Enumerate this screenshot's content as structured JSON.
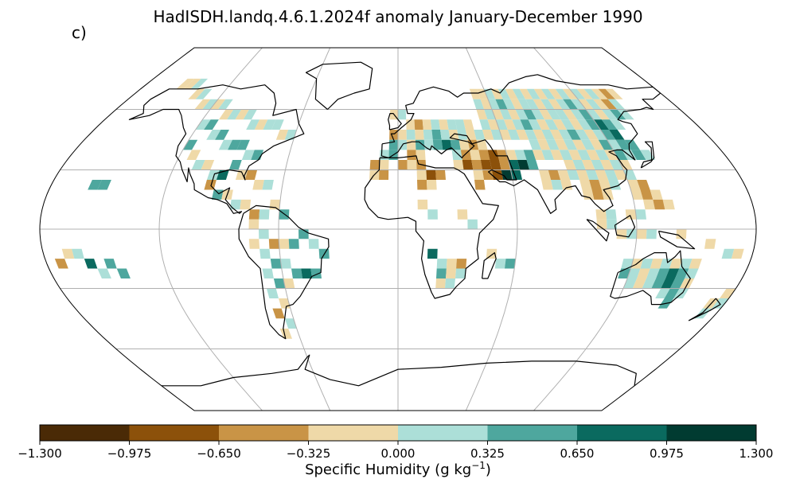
{
  "title": "HadISDH.landq.4.6.1.2024f anomaly January-December 1990",
  "panel_label": "c)",
  "colorbar": {
    "label_main": "Specific Humidity (g kg",
    "label_exp": "−1",
    "label_close": ")",
    "ticks": [
      "−1.300",
      "−0.975",
      "−0.650",
      "−0.325",
      "0.000",
      "0.325",
      "0.650",
      "0.975",
      "1.300"
    ],
    "colors": [
      "#4a2a06",
      "#8c510a",
      "#c99446",
      "#efd9a8",
      "#acdfd8",
      "#4ea79e",
      "#0a6a5f",
      "#013b31"
    ]
  },
  "map_data": {
    "projection": "robinson",
    "graticule": true,
    "continent_outlines": true,
    "grid_resolution_deg": 5,
    "field": "specific humidity anomaly",
    "units": "g kg-1",
    "range": [
      -1.3,
      1.3
    ],
    "cells": [
      [
        -155,
        70,
        3
      ],
      [
        -150,
        70,
        3
      ],
      [
        -145,
        70,
        4
      ],
      [
        -140,
        65,
        3
      ],
      [
        -135,
        65,
        4
      ],
      [
        -130,
        60,
        3
      ],
      [
        -125,
        60,
        4
      ],
      [
        -120,
        60,
        3
      ],
      [
        -115,
        60,
        4
      ],
      [
        -110,
        55,
        3
      ],
      [
        -105,
        55,
        4
      ],
      [
        -100,
        55,
        3
      ],
      [
        -95,
        55,
        4
      ],
      [
        -90,
        50,
        4
      ],
      [
        -85,
        50,
        3
      ],
      [
        -80,
        50,
        4
      ],
      [
        -75,
        50,
        4
      ],
      [
        -70,
        45,
        3
      ],
      [
        -65,
        45,
        4
      ],
      [
        -120,
        50,
        4
      ],
      [
        -115,
        50,
        5
      ],
      [
        -110,
        45,
        4
      ],
      [
        -105,
        45,
        5
      ],
      [
        -100,
        40,
        4
      ],
      [
        -95,
        40,
        5
      ],
      [
        -90,
        40,
        5
      ],
      [
        -85,
        35,
        4
      ],
      [
        -80,
        35,
        5
      ],
      [
        -120,
        40,
        5
      ],
      [
        -115,
        35,
        3
      ],
      [
        -110,
        30,
        4
      ],
      [
        -105,
        30,
        3
      ],
      [
        -100,
        25,
        4
      ],
      [
        -95,
        25,
        6
      ],
      [
        -90,
        30,
        5
      ],
      [
        -85,
        25,
        3
      ],
      [
        -80,
        25,
        2
      ],
      [
        -75,
        20,
        3
      ],
      [
        -70,
        20,
        4
      ],
      [
        -100,
        20,
        2
      ],
      [
        -95,
        15,
        5
      ],
      [
        -90,
        15,
        3
      ],
      [
        -85,
        10,
        4
      ],
      [
        -80,
        10,
        3
      ],
      [
        -75,
        5,
        2
      ],
      [
        -70,
        5,
        4
      ],
      [
        -65,
        10,
        3
      ],
      [
        -60,
        5,
        5
      ],
      [
        -75,
        0,
        3
      ],
      [
        -70,
        -5,
        4
      ],
      [
        -65,
        -10,
        2
      ],
      [
        -60,
        -10,
        3
      ],
      [
        -55,
        -10,
        5
      ],
      [
        -50,
        -5,
        5
      ],
      [
        -45,
        -10,
        4
      ],
      [
        -40,
        -15,
        5
      ],
      [
        -75,
        -10,
        3
      ],
      [
        -70,
        -15,
        4
      ],
      [
        -65,
        -20,
        5
      ],
      [
        -60,
        -20,
        4
      ],
      [
        -55,
        -25,
        5
      ],
      [
        -50,
        -25,
        6
      ],
      [
        -45,
        -25,
        5
      ],
      [
        -70,
        -25,
        4
      ],
      [
        -65,
        -30,
        5
      ],
      [
        -60,
        -30,
        3
      ],
      [
        -70,
        -35,
        4
      ],
      [
        -65,
        -40,
        3
      ],
      [
        -70,
        -45,
        2
      ],
      [
        -65,
        -50,
        4
      ],
      [
        -70,
        -55,
        3
      ],
      [
        -160,
        20,
        5
      ],
      [
        -155,
        20,
        5
      ],
      [
        -170,
        -15,
        3
      ],
      [
        -165,
        -15,
        4
      ],
      [
        -160,
        -20,
        6
      ],
      [
        -150,
        -20,
        5
      ],
      [
        -155,
        -25,
        4
      ],
      [
        -145,
        -25,
        5
      ],
      [
        -175,
        -20,
        2
      ],
      [
        -5,
        55,
        3
      ],
      [
        0,
        55,
        4
      ],
      [
        5,
        50,
        3
      ],
      [
        10,
        50,
        2
      ],
      [
        15,
        50,
        3
      ],
      [
        20,
        50,
        4
      ],
      [
        25,
        50,
        3
      ],
      [
        30,
        50,
        4
      ],
      [
        35,
        50,
        4
      ],
      [
        40,
        50,
        3
      ],
      [
        -5,
        45,
        2
      ],
      [
        0,
        45,
        3
      ],
      [
        5,
        45,
        4
      ],
      [
        10,
        45,
        3
      ],
      [
        15,
        45,
        4
      ],
      [
        20,
        45,
        5
      ],
      [
        25,
        45,
        4
      ],
      [
        30,
        45,
        3
      ],
      [
        35,
        45,
        4
      ],
      [
        40,
        45,
        3
      ],
      [
        45,
        45,
        4
      ],
      [
        -5,
        40,
        5
      ],
      [
        0,
        40,
        4
      ],
      [
        5,
        40,
        3
      ],
      [
        10,
        40,
        5
      ],
      [
        15,
        40,
        4
      ],
      [
        20,
        40,
        5
      ],
      [
        25,
        40,
        6
      ],
      [
        30,
        40,
        5
      ],
      [
        35,
        40,
        3
      ],
      [
        40,
        40,
        2
      ],
      [
        45,
        40,
        3
      ],
      [
        -10,
        35,
        4
      ],
      [
        -5,
        35,
        5
      ],
      [
        5,
        35,
        2
      ],
      [
        10,
        35,
        3
      ],
      [
        30,
        35,
        4
      ],
      [
        35,
        35,
        2
      ],
      [
        40,
        35,
        3
      ],
      [
        45,
        35,
        2
      ],
      [
        50,
        35,
        1
      ],
      [
        55,
        35,
        2
      ],
      [
        60,
        35,
        3
      ],
      [
        65,
        35,
        4
      ],
      [
        70,
        35,
        5
      ],
      [
        -15,
        30,
        2
      ],
      [
        -10,
        30,
        3
      ],
      [
        0,
        30,
        2
      ],
      [
        5,
        30,
        3
      ],
      [
        10,
        30,
        2
      ],
      [
        30,
        30,
        3
      ],
      [
        35,
        30,
        1
      ],
      [
        40,
        30,
        2
      ],
      [
        45,
        30,
        1
      ],
      [
        50,
        30,
        1
      ],
      [
        55,
        30,
        2
      ],
      [
        60,
        30,
        6
      ],
      [
        65,
        30,
        7
      ],
      [
        70,
        30,
        5
      ],
      [
        -15,
        25,
        3
      ],
      [
        -10,
        25,
        2
      ],
      [
        10,
        25,
        3
      ],
      [
        15,
        25,
        1
      ],
      [
        20,
        25,
        2
      ],
      [
        40,
        25,
        3
      ],
      [
        45,
        25,
        2
      ],
      [
        50,
        25,
        1
      ],
      [
        55,
        25,
        7
      ],
      [
        60,
        25,
        6
      ],
      [
        75,
        25,
        3
      ],
      [
        80,
        25,
        2
      ],
      [
        85,
        25,
        3
      ],
      [
        10,
        20,
        2
      ],
      [
        15,
        20,
        3
      ],
      [
        40,
        20,
        2
      ],
      [
        75,
        20,
        3
      ],
      [
        80,
        20,
        4
      ],
      [
        85,
        20,
        3
      ],
      [
        10,
        10,
        3
      ],
      [
        15,
        5,
        4
      ],
      [
        30,
        5,
        3
      ],
      [
        35,
        0,
        4
      ],
      [
        15,
        -15,
        6
      ],
      [
        20,
        -20,
        4
      ],
      [
        25,
        -20,
        3
      ],
      [
        30,
        -20,
        2
      ],
      [
        20,
        -25,
        5
      ],
      [
        25,
        -25,
        3
      ],
      [
        30,
        -25,
        4
      ],
      [
        20,
        -30,
        3
      ],
      [
        25,
        -30,
        4
      ],
      [
        45,
        -15,
        3
      ],
      [
        50,
        -20,
        4
      ],
      [
        55,
        -20,
        5
      ],
      [
        50,
        65,
        3
      ],
      [
        55,
        65,
        3
      ],
      [
        60,
        65,
        4
      ],
      [
        65,
        65,
        3
      ],
      [
        70,
        65,
        4
      ],
      [
        75,
        65,
        3
      ],
      [
        80,
        65,
        4
      ],
      [
        85,
        65,
        3
      ],
      [
        90,
        65,
        4
      ],
      [
        95,
        65,
        3
      ],
      [
        100,
        65,
        4
      ],
      [
        105,
        65,
        3
      ],
      [
        110,
        65,
        4
      ],
      [
        115,
        65,
        3
      ],
      [
        120,
        65,
        4
      ],
      [
        125,
        65,
        3
      ],
      [
        130,
        65,
        4
      ],
      [
        135,
        65,
        3
      ],
      [
        140,
        65,
        2
      ],
      [
        145,
        65,
        3
      ],
      [
        50,
        60,
        4
      ],
      [
        55,
        60,
        3
      ],
      [
        60,
        60,
        4
      ],
      [
        65,
        60,
        5
      ],
      [
        70,
        60,
        4
      ],
      [
        75,
        60,
        3
      ],
      [
        80,
        60,
        4
      ],
      [
        85,
        60,
        4
      ],
      [
        90,
        60,
        3
      ],
      [
        95,
        60,
        4
      ],
      [
        100,
        60,
        3
      ],
      [
        105,
        60,
        4
      ],
      [
        110,
        60,
        5
      ],
      [
        115,
        60,
        4
      ],
      [
        120,
        60,
        3
      ],
      [
        125,
        60,
        4
      ],
      [
        130,
        60,
        3
      ],
      [
        135,
        60,
        2
      ],
      [
        140,
        60,
        4
      ],
      [
        50,
        55,
        3
      ],
      [
        55,
        55,
        4
      ],
      [
        60,
        55,
        3
      ],
      [
        65,
        55,
        4
      ],
      [
        70,
        55,
        3
      ],
      [
        75,
        55,
        4
      ],
      [
        80,
        55,
        5
      ],
      [
        85,
        55,
        4
      ],
      [
        90,
        55,
        3
      ],
      [
        95,
        55,
        4
      ],
      [
        100,
        55,
        4
      ],
      [
        105,
        55,
        3
      ],
      [
        110,
        55,
        4
      ],
      [
        115,
        55,
        5
      ],
      [
        120,
        55,
        4
      ],
      [
        125,
        55,
        3
      ],
      [
        130,
        55,
        4
      ],
      [
        135,
        55,
        5
      ],
      [
        140,
        55,
        4
      ],
      [
        50,
        50,
        4
      ],
      [
        55,
        50,
        3
      ],
      [
        60,
        50,
        4
      ],
      [
        65,
        50,
        3
      ],
      [
        70,
        50,
        4
      ],
      [
        75,
        50,
        5
      ],
      [
        80,
        50,
        4
      ],
      [
        85,
        50,
        3
      ],
      [
        90,
        50,
        4
      ],
      [
        95,
        50,
        3
      ],
      [
        100,
        50,
        4
      ],
      [
        105,
        50,
        3
      ],
      [
        110,
        50,
        4
      ],
      [
        115,
        50,
        5
      ],
      [
        120,
        50,
        6
      ],
      [
        125,
        50,
        5
      ],
      [
        130,
        50,
        4
      ],
      [
        50,
        45,
        3
      ],
      [
        55,
        45,
        4
      ],
      [
        60,
        45,
        3
      ],
      [
        65,
        45,
        4
      ],
      [
        70,
        45,
        3
      ],
      [
        75,
        45,
        4
      ],
      [
        80,
        45,
        3
      ],
      [
        85,
        45,
        4
      ],
      [
        90,
        45,
        3
      ],
      [
        95,
        45,
        4
      ],
      [
        100,
        45,
        5
      ],
      [
        105,
        45,
        4
      ],
      [
        110,
        45,
        3
      ],
      [
        115,
        45,
        4
      ],
      [
        120,
        45,
        5
      ],
      [
        125,
        45,
        6
      ],
      [
        130,
        40,
        5
      ],
      [
        75,
        40,
        4
      ],
      [
        80,
        40,
        3
      ],
      [
        85,
        40,
        4
      ],
      [
        90,
        40,
        3
      ],
      [
        95,
        40,
        4
      ],
      [
        100,
        40,
        3
      ],
      [
        105,
        40,
        4
      ],
      [
        110,
        40,
        3
      ],
      [
        115,
        40,
        5
      ],
      [
        120,
        40,
        4
      ],
      [
        125,
        40,
        5
      ],
      [
        75,
        35,
        3
      ],
      [
        80,
        35,
        4
      ],
      [
        85,
        35,
        3
      ],
      [
        90,
        35,
        4
      ],
      [
        95,
        35,
        3
      ],
      [
        100,
        35,
        4
      ],
      [
        105,
        35,
        3
      ],
      [
        110,
        35,
        4
      ],
      [
        115,
        35,
        3
      ],
      [
        120,
        35,
        5
      ],
      [
        125,
        35,
        4
      ],
      [
        130,
        35,
        5
      ],
      [
        135,
        35,
        4
      ],
      [
        90,
        30,
        3
      ],
      [
        95,
        30,
        4
      ],
      [
        100,
        30,
        3
      ],
      [
        105,
        30,
        4
      ],
      [
        110,
        30,
        3
      ],
      [
        115,
        30,
        4
      ],
      [
        120,
        30,
        3
      ],
      [
        90,
        25,
        4
      ],
      [
        95,
        25,
        3
      ],
      [
        100,
        25,
        4
      ],
      [
        105,
        25,
        3
      ],
      [
        110,
        25,
        4
      ],
      [
        115,
        25,
        3
      ],
      [
        120,
        25,
        4
      ],
      [
        95,
        20,
        3
      ],
      [
        100,
        20,
        2
      ],
      [
        105,
        20,
        3
      ],
      [
        110,
        20,
        4
      ],
      [
        120,
        20,
        3
      ],
      [
        125,
        20,
        2
      ],
      [
        95,
        15,
        3
      ],
      [
        100,
        15,
        2
      ],
      [
        105,
        15,
        3
      ],
      [
        120,
        15,
        3
      ],
      [
        125,
        15,
        2
      ],
      [
        130,
        15,
        3
      ],
      [
        135,
        10,
        3
      ],
      [
        100,
        5,
        3
      ],
      [
        105,
        5,
        4
      ],
      [
        115,
        5,
        3
      ],
      [
        120,
        5,
        4
      ],
      [
        125,
        10,
        3
      ],
      [
        130,
        10,
        2
      ],
      [
        100,
        0,
        3
      ],
      [
        105,
        0,
        4
      ],
      [
        110,
        -5,
        3
      ],
      [
        115,
        -5,
        4
      ],
      [
        120,
        -5,
        3
      ],
      [
        125,
        -5,
        4
      ],
      [
        140,
        -5,
        3
      ],
      [
        115,
        -20,
        4
      ],
      [
        120,
        -20,
        3
      ],
      [
        125,
        -20,
        4
      ],
      [
        130,
        -20,
        3
      ],
      [
        135,
        -20,
        4
      ],
      [
        140,
        -20,
        3
      ],
      [
        145,
        -20,
        4
      ],
      [
        150,
        -20,
        3
      ],
      [
        115,
        -25,
        5
      ],
      [
        120,
        -25,
        4
      ],
      [
        125,
        -25,
        3
      ],
      [
        130,
        -25,
        4
      ],
      [
        135,
        -25,
        5
      ],
      [
        140,
        -25,
        6
      ],
      [
        145,
        -25,
        5
      ],
      [
        150,
        -25,
        4
      ],
      [
        120,
        -30,
        4
      ],
      [
        125,
        -30,
        3
      ],
      [
        130,
        -30,
        4
      ],
      [
        135,
        -30,
        5
      ],
      [
        140,
        -30,
        6
      ],
      [
        145,
        -30,
        5
      ],
      [
        150,
        -30,
        3
      ],
      [
        140,
        -35,
        4
      ],
      [
        145,
        -35,
        5
      ],
      [
        150,
        -35,
        4
      ],
      [
        145,
        -40,
        5
      ],
      [
        170,
        -40,
        3
      ],
      [
        175,
        -40,
        4
      ],
      [
        175,
        -35,
        3
      ],
      [
        170,
        -45,
        4
      ],
      [
        165,
        -15,
        4
      ],
      [
        170,
        -15,
        3
      ],
      [
        155,
        -10,
        3
      ]
    ]
  }
}
